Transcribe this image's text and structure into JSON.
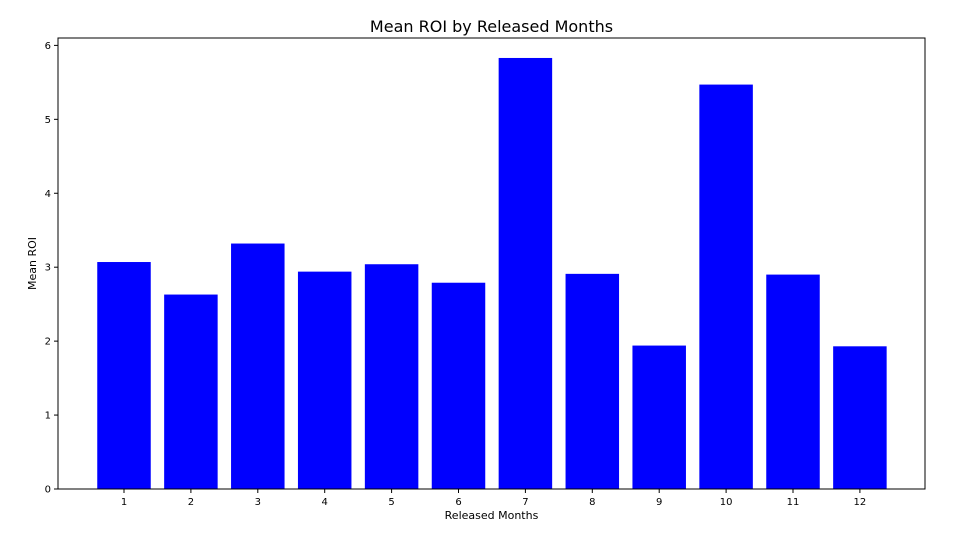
{
  "chart_data": {
    "type": "bar",
    "title": "Mean ROI by Released Months",
    "xlabel": "Released Months",
    "ylabel": "Mean ROI",
    "categories": [
      "1",
      "2",
      "3",
      "4",
      "5",
      "6",
      "7",
      "8",
      "9",
      "10",
      "11",
      "12"
    ],
    "values": [
      3.07,
      2.63,
      3.32,
      2.94,
      3.04,
      2.79,
      5.83,
      2.91,
      1.94,
      5.47,
      2.9,
      1.93
    ],
    "ylim": [
      0,
      6.1
    ],
    "yticks": [
      "0",
      "1",
      "2",
      "3",
      "4",
      "5",
      "6"
    ],
    "bar_color": "#0000ff",
    "grid": false,
    "legend": "none"
  }
}
